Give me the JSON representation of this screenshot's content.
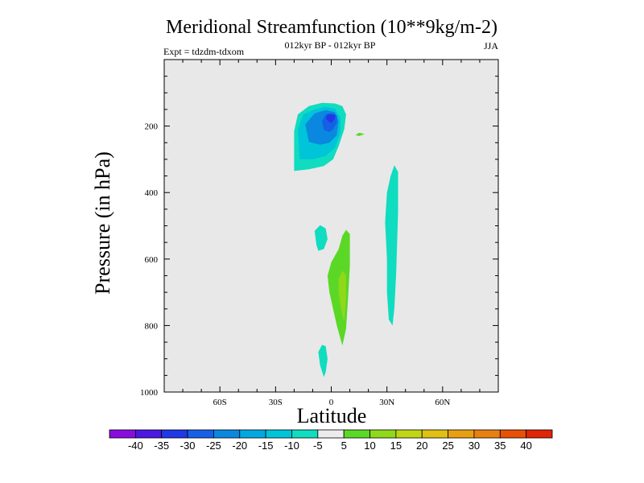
{
  "chart_data": {
    "type": "contour",
    "title": "Meridional Streamfunction (10**9kg/m-2)",
    "subtitle": "012kyr BP - 012kyr BP",
    "experiment": "Expt = tdzdm-tdxom",
    "season": "JJA",
    "xlabel": "Latitude",
    "ylabel": "Pressure (in hPa)",
    "xlim": [
      -90,
      90
    ],
    "ylim": [
      1000,
      0
    ],
    "x_ticks": [
      {
        "value": -60,
        "label": "60S"
      },
      {
        "value": -30,
        "label": "30S"
      },
      {
        "value": 0,
        "label": "0"
      },
      {
        "value": 30,
        "label": "30N"
      },
      {
        "value": 60,
        "label": "60N"
      }
    ],
    "y_ticks": [
      {
        "value": 200,
        "label": "200"
      },
      {
        "value": 400,
        "label": "400"
      },
      {
        "value": 600,
        "label": "600"
      },
      {
        "value": 800,
        "label": "800"
      },
      {
        "value": 1000,
        "label": "1000"
      }
    ],
    "colorbar": {
      "levels": [
        -40,
        -35,
        -30,
        -25,
        -20,
        -15,
        -10,
        -5,
        5,
        10,
        15,
        20,
        25,
        30,
        35,
        40
      ],
      "labels": [
        "-40",
        "-35",
        "-30",
        "-25",
        "-20",
        "-15",
        "-10",
        "-5",
        "5",
        "10",
        "15",
        "20",
        "25",
        "30",
        "35",
        "40"
      ],
      "colors": [
        "#8a0de0",
        "#4a18e0",
        "#2038e6",
        "#1560e6",
        "#0a88e0",
        "#02a8e2",
        "#00c4d8",
        "#10dcc0",
        "#ececec",
        "#5ad825",
        "#90d81a",
        "#c0d614",
        "#e0c010",
        "#e8a012",
        "#e88010",
        "#e85008",
        "#e02508"
      ]
    },
    "contours": [
      {
        "name": "southern-cell-outer",
        "value": -10,
        "color": "#10dcc0",
        "points": [
          [
            -20,
            335
          ],
          [
            -20,
            215
          ],
          [
            -18,
            165
          ],
          [
            -12,
            140
          ],
          [
            -5,
            130
          ],
          [
            2,
            132
          ],
          [
            6,
            140
          ],
          [
            8,
            165
          ],
          [
            7,
            210
          ],
          [
            4,
            260
          ],
          [
            1,
            300
          ],
          [
            -4,
            320
          ],
          [
            -12,
            330
          ]
        ]
      },
      {
        "name": "southern-cell-mid",
        "value": -15,
        "color": "#00c4d8",
        "points": [
          [
            -17,
            300
          ],
          [
            -18,
            210
          ],
          [
            -15,
            165
          ],
          [
            -9,
            150
          ],
          [
            -3,
            142
          ],
          [
            2,
            148
          ],
          [
            5,
            175
          ],
          [
            5,
            220
          ],
          [
            2,
            265
          ],
          [
            -3,
            290
          ],
          [
            -10,
            300
          ]
        ]
      },
      {
        "name": "southern-cell-inner",
        "value": -20,
        "color": "#0a88e0",
        "points": [
          [
            -12,
            248
          ],
          [
            -14,
            195
          ],
          [
            -9,
            162
          ],
          [
            -3,
            152
          ],
          [
            2,
            158
          ],
          [
            4,
            185
          ],
          [
            3,
            228
          ],
          [
            -1,
            250
          ],
          [
            -6,
            256
          ]
        ]
      },
      {
        "name": "southern-cell-core",
        "value": -25,
        "color": "#1560e6",
        "points": [
          [
            -4,
            212
          ],
          [
            -5,
            185
          ],
          [
            -3,
            165
          ],
          [
            0,
            160
          ],
          [
            3,
            168
          ],
          [
            3,
            190
          ],
          [
            1,
            210
          ],
          [
            -1,
            218
          ]
        ]
      },
      {
        "name": "southern-cell-peak",
        "value": -30,
        "color": "#2038e6",
        "points": [
          [
            -3,
            178
          ],
          [
            -2,
            165
          ],
          [
            2,
            166
          ],
          [
            2,
            176
          ],
          [
            0,
            192
          ]
        ]
      },
      {
        "name": "small-positive-blob",
        "value": 5,
        "color": "#5ad825",
        "points": [
          [
            13,
            227
          ],
          [
            15,
            220
          ],
          [
            18,
            224
          ],
          [
            15,
            230
          ]
        ]
      },
      {
        "name": "northern-column",
        "value": -10,
        "color": "#10dcc0",
        "points": [
          [
            29,
            490
          ],
          [
            30,
            400
          ],
          [
            32,
            350
          ],
          [
            34,
            318
          ],
          [
            36,
            338
          ],
          [
            36,
            460
          ],
          [
            35,
            640
          ],
          [
            34,
            748
          ],
          [
            33,
            800
          ],
          [
            31,
            782
          ],
          [
            30,
            700
          ],
          [
            30,
            600
          ]
        ]
      },
      {
        "name": "mid-left-blob",
        "value": -10,
        "color": "#10dcc0",
        "points": [
          [
            -8,
            558
          ],
          [
            -9,
            515
          ],
          [
            -6,
            498
          ],
          [
            -3,
            508
          ],
          [
            -2,
            540
          ],
          [
            -4,
            570
          ],
          [
            -7,
            575
          ]
        ]
      },
      {
        "name": "lower-left-blob",
        "value": -10,
        "color": "#10dcc0",
        "points": [
          [
            -6,
            920
          ],
          [
            -7,
            880
          ],
          [
            -5,
            858
          ],
          [
            -3,
            862
          ],
          [
            -2,
            900
          ],
          [
            -3,
            940
          ],
          [
            -4,
            955
          ]
        ]
      },
      {
        "name": "lower-cell-outer",
        "value": 5,
        "color": "#5ad825",
        "points": [
          [
            -1,
            700
          ],
          [
            -2,
            650
          ],
          [
            0,
            610
          ],
          [
            4,
            570
          ],
          [
            6,
            530
          ],
          [
            8,
            512
          ],
          [
            10,
            525
          ],
          [
            10,
            620
          ],
          [
            9,
            720
          ],
          [
            8,
            810
          ],
          [
            6,
            860
          ],
          [
            3,
            800
          ],
          [
            1,
            750
          ]
        ]
      },
      {
        "name": "lower-cell-inner",
        "value": 10,
        "color": "#90d81a",
        "points": [
          [
            4,
            700
          ],
          [
            4,
            660
          ],
          [
            6,
            635
          ],
          [
            8,
            648
          ],
          [
            8,
            720
          ],
          [
            7,
            788
          ],
          [
            6,
            768
          ],
          [
            5,
            740
          ]
        ]
      }
    ]
  }
}
